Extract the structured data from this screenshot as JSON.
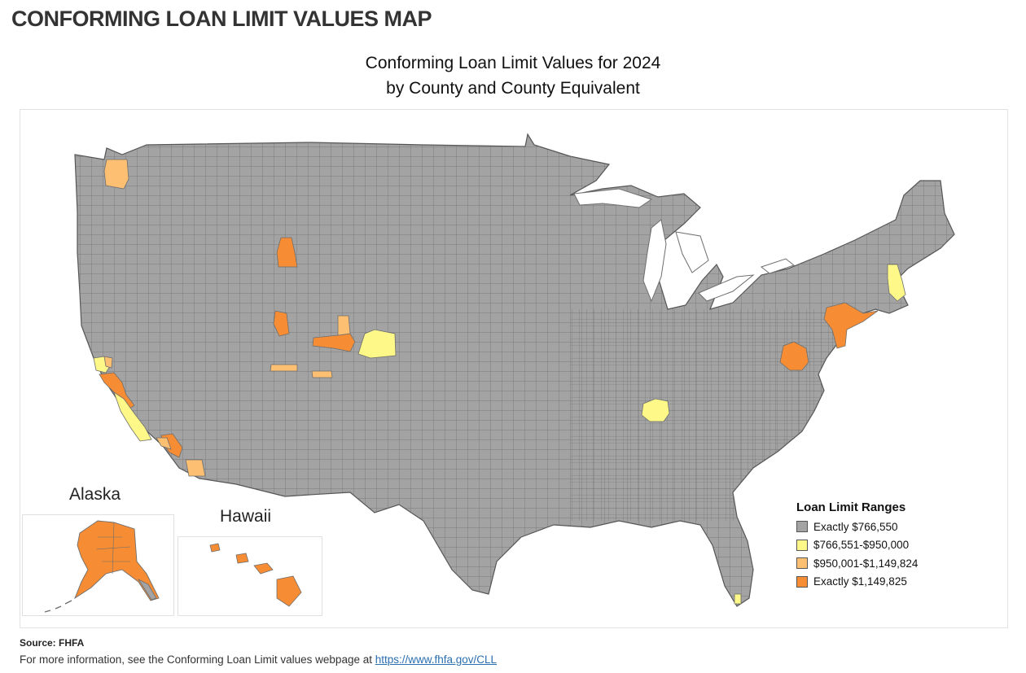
{
  "page": {
    "title": "CONFORMING LOAN LIMIT VALUES MAP"
  },
  "map": {
    "title_line1": "Conforming Loan Limit Values for 2024",
    "title_line2": "by County and County Equivalent",
    "insets": {
      "alaska_label": "Alaska",
      "hawaii_label": "Hawaii"
    },
    "colors": {
      "gray": "#a3a3a3",
      "yellow": "#fdf887",
      "light_orange": "#fdc072",
      "orange": "#f68d34",
      "border": "#6e6e6e"
    },
    "legend": {
      "title": "Loan Limit Ranges",
      "items": [
        {
          "label": "Exactly $766,550",
          "color": "#a3a3a3"
        },
        {
          "label": "$766,551-$950,000",
          "color": "#fdf887"
        },
        {
          "label": "$950,001-$1,149,824",
          "color": "#fdc072"
        },
        {
          "label": "Exactly $1,149,825",
          "color": "#f68d34"
        }
      ]
    }
  },
  "footer": {
    "source": "Source: FHFA",
    "info_text": "For more information, see the Conforming Loan Limit values webpage at ",
    "link_text": "https://www.fhfa.gov/CLL"
  }
}
